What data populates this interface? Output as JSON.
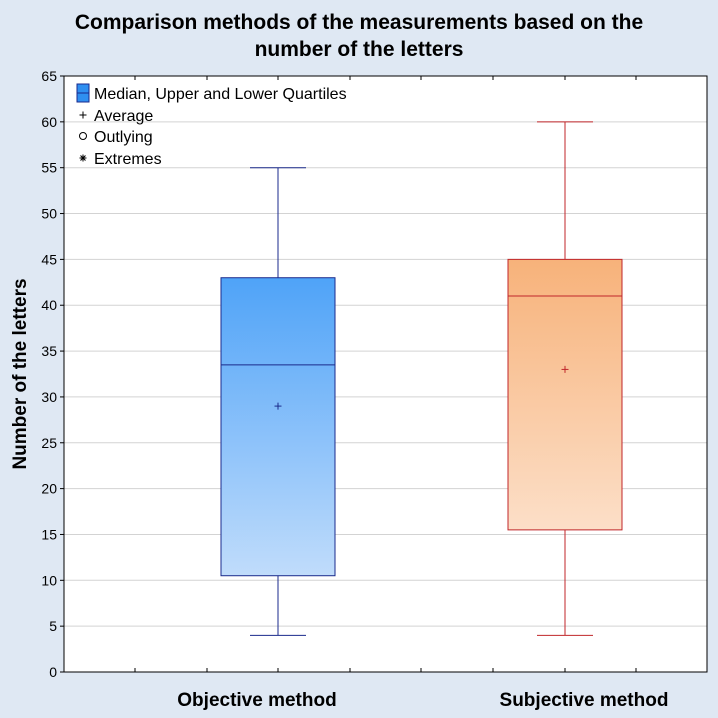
{
  "chart_data": {
    "type": "boxplot",
    "title_lines": [
      "Comparison methods of the measurements based on the",
      "number of the letters"
    ],
    "xlabel": "",
    "ylabel": "Number of the letters",
    "ylim": [
      0,
      65
    ],
    "yticks": [
      0,
      5,
      10,
      15,
      20,
      25,
      30,
      35,
      40,
      45,
      50,
      55,
      60,
      65
    ],
    "grid": true,
    "legend_position": "top-left",
    "legend": [
      {
        "symbol": "box",
        "label": "Median, Upper and Lower Quartiles"
      },
      {
        "symbol": "+",
        "label": "Average"
      },
      {
        "symbol": "o",
        "label": "Outlying"
      },
      {
        "symbol": "*",
        "label": "Extremes"
      }
    ],
    "categories": [
      "Objective method",
      "Subjective method"
    ],
    "series": [
      {
        "name": "Objective method",
        "min": 4,
        "q1": 10.5,
        "median": 33.5,
        "q3": 43,
        "max": 55,
        "mean": 29,
        "fill_top": "#4fa3f8",
        "fill_bottom": "#c0dcfb",
        "stroke": "#1a2a8c"
      },
      {
        "name": "Subjective method",
        "min": 4,
        "q1": 15.5,
        "median": 41,
        "q3": 45,
        "max": 60,
        "mean": 33,
        "fill_top": "#f7b27a",
        "fill_bottom": "#fcdfc8",
        "stroke": "#c0262a"
      }
    ]
  },
  "colors": {
    "background": "#dfe8f3",
    "plot_background": "#ffffff",
    "grid": "#d3d3d3",
    "legend_box_fill": "#2f8ff0",
    "legend_box_stroke": "#1a2a8c"
  }
}
